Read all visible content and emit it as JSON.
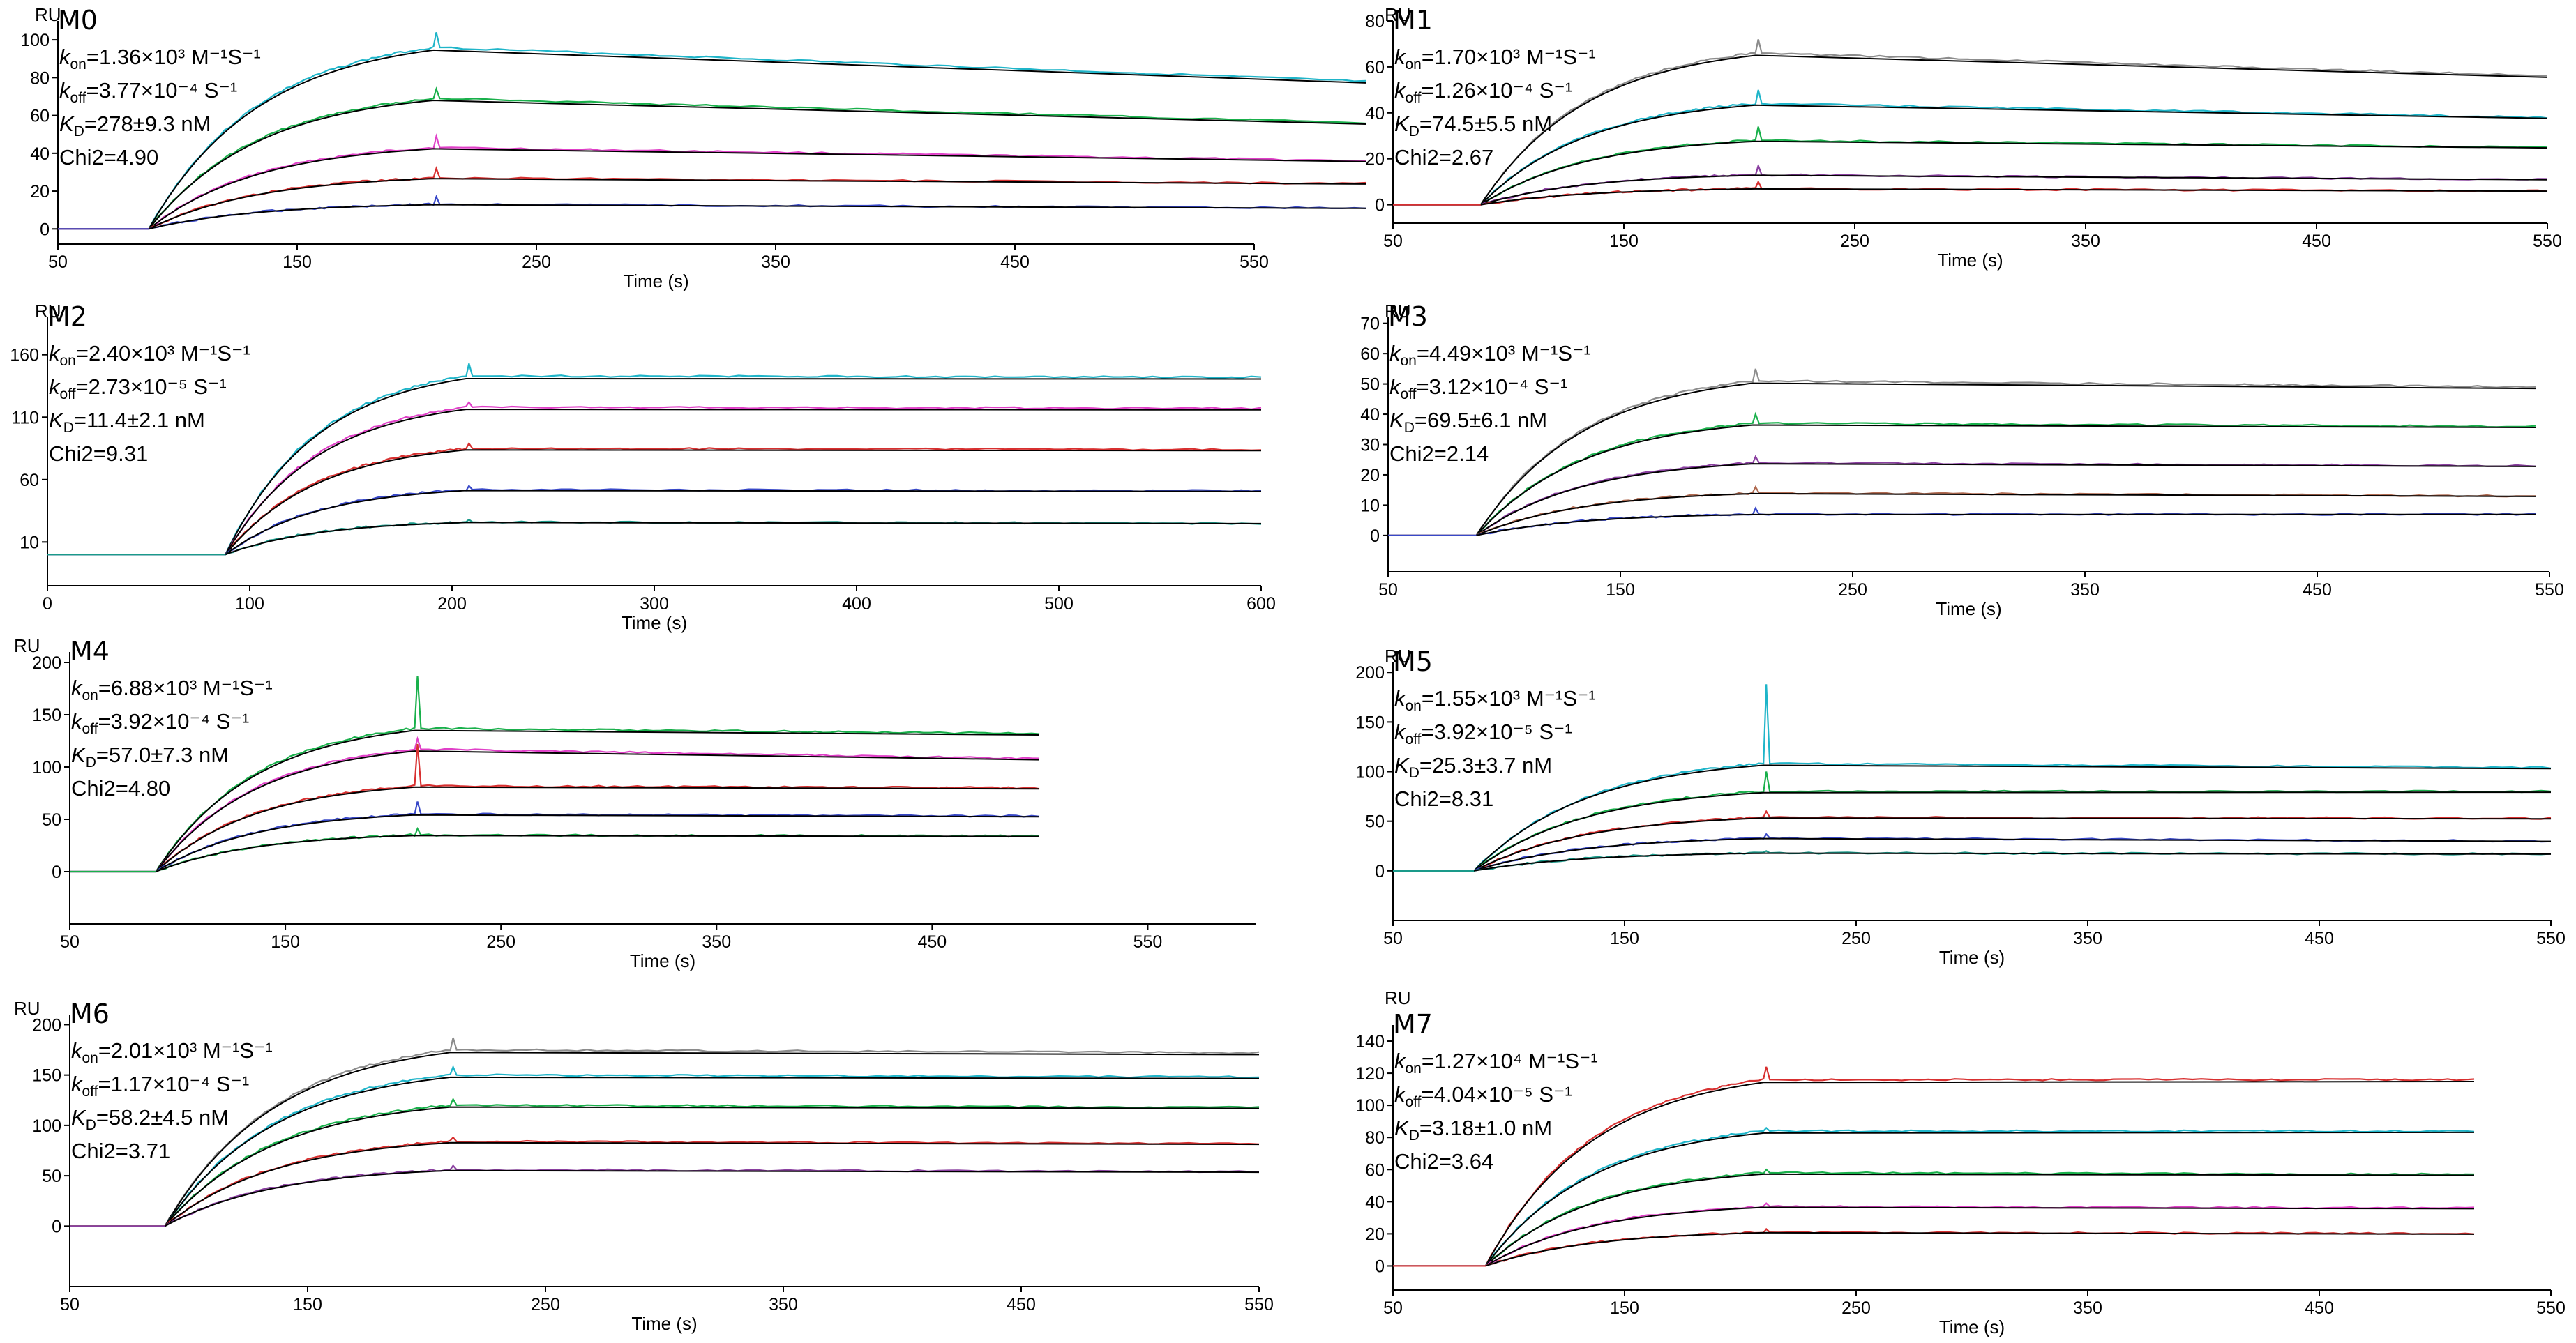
{
  "figure_description": "Sensorgrams of 8 protein samples M0–M7 with kinetic fits",
  "colors": {
    "fit": "#000000",
    "gray": "#8c8c8c",
    "cyan": "#1fb5c9",
    "green": "#19b04b",
    "purple": "#8a3fa0",
    "magenta": "#e040c8",
    "red": "#d83030",
    "blue": "#3848c8",
    "teal": "#1a9a8a",
    "brown": "#b06a50"
  },
  "chart_data": [
    {
      "id": "M0",
      "type": "line",
      "title": "M0",
      "xlabel": "Time (s)",
      "ylabel": "RU",
      "xlim": [
        50,
        550
      ],
      "ylim": [
        -8,
        110
      ],
      "xticks": [
        "50",
        "150",
        "250",
        "350",
        "450",
        "550"
      ],
      "yticks": [
        "0",
        "20",
        "40",
        "60",
        "80",
        "100"
      ],
      "inject": 88,
      "stop": 207,
      "annotation": {
        "kon": "1.36×10³ M⁻¹S⁻¹",
        "koff": "3.77×10⁻⁴ S⁻¹",
        "KD": "278±9.3 nM",
        "chi2": "4.90"
      },
      "series": [
        {
          "name": "cyan",
          "color": "cyan",
          "plateau": 96,
          "end": 78,
          "spike": 8
        },
        {
          "name": "green",
          "color": "green",
          "plateau": 69,
          "end": 56,
          "spike": 5
        },
        {
          "name": "magenta",
          "color": "magenta",
          "plateau": 43,
          "end": 36,
          "spike": 6
        },
        {
          "name": "red",
          "color": "red",
          "plateau": 27,
          "end": 24,
          "spike": 5
        },
        {
          "name": "blue",
          "color": "blue",
          "plateau": 13,
          "end": 11,
          "spike": 4
        }
      ]
    },
    {
      "id": "M1",
      "type": "line",
      "title": "M1",
      "xlabel": "Time (s)",
      "ylabel": "RU",
      "xlim": [
        50,
        550
      ],
      "ylim": [
        -8,
        80
      ],
      "xticks": [
        "50",
        "150",
        "250",
        "350",
        "450",
        "550"
      ],
      "yticks": [
        "0",
        "20",
        "40",
        "60",
        "80"
      ],
      "inject": 88,
      "stop": 207,
      "annotation": {
        "kon": "1.70×10³ M⁻¹S⁻¹",
        "koff": "1.26×10⁻⁴ S⁻¹",
        "KD": "74.5±5.5 nM",
        "chi2": "2.67"
      },
      "series": [
        {
          "name": "gray",
          "color": "gray",
          "plateau": 66,
          "end": 56,
          "spike": 6
        },
        {
          "name": "cyan",
          "color": "cyan",
          "plateau": 44,
          "end": 38,
          "spike": 6
        },
        {
          "name": "green",
          "color": "green",
          "plateau": 28,
          "end": 25,
          "spike": 6
        },
        {
          "name": "purple",
          "color": "purple",
          "plateau": 13,
          "end": 11,
          "spike": 4
        },
        {
          "name": "red",
          "color": "red",
          "plateau": 7,
          "end": 6,
          "spike": 3
        }
      ]
    },
    {
      "id": "M2",
      "type": "line",
      "title": "M2",
      "xlabel": "Time (s)",
      "ylabel": "RU",
      "xlim": [
        0,
        600
      ],
      "ylim": [
        -25,
        190
      ],
      "xticks": [
        "0",
        "100",
        "200",
        "300",
        "400",
        "500",
        "600"
      ],
      "yticks": [
        "10",
        "60",
        "110",
        "160"
      ],
      "inject": 88,
      "stop": 207,
      "annotation": {
        "kon": "2.40×10³ M⁻¹S⁻¹",
        "koff": "2.73×10⁻⁵ S⁻¹",
        "KD": "11.4±2.1 nM",
        "chi2": "9.31"
      },
      "series": [
        {
          "name": "cyan",
          "color": "cyan",
          "plateau": 143,
          "end": 142,
          "spike": 10
        },
        {
          "name": "magenta",
          "color": "magenta",
          "plateau": 118,
          "end": 117,
          "spike": 4
        },
        {
          "name": "red",
          "color": "red",
          "plateau": 85,
          "end": 84,
          "spike": 4
        },
        {
          "name": "blue",
          "color": "blue",
          "plateau": 52,
          "end": 51,
          "spike": 3
        },
        {
          "name": "teal",
          "color": "teal",
          "plateau": 26,
          "end": 25,
          "spike": 2
        }
      ]
    },
    {
      "id": "M3",
      "type": "line",
      "title": "M3",
      "xlabel": "Time (s)",
      "ylabel": "RU",
      "xlim": [
        50,
        550
      ],
      "ylim": [
        -12,
        72
      ],
      "xticks": [
        "50",
        "150",
        "250",
        "350",
        "450",
        "550"
      ],
      "yticks": [
        "0",
        "10",
        "20",
        "30",
        "40",
        "50",
        "60",
        "70"
      ],
      "inject": 88,
      "stop": 207,
      "annotation": {
        "kon": "4.49×10³ M⁻¹S⁻¹",
        "koff": "3.12×10⁻⁴ S⁻¹",
        "KD": "69.5±6.1 nM",
        "chi2": "2.14"
      },
      "series": [
        {
          "name": "gray",
          "color": "gray",
          "plateau": 51,
          "end": 49,
          "spike": 4
        },
        {
          "name": "green",
          "color": "green",
          "plateau": 37,
          "end": 36,
          "spike": 3
        },
        {
          "name": "purple",
          "color": "purple",
          "plateau": 24,
          "end": 23,
          "spike": 2
        },
        {
          "name": "brown",
          "color": "brown",
          "plateau": 14,
          "end": 13,
          "spike": 2
        },
        {
          "name": "blue",
          "color": "blue",
          "plateau": 7,
          "end": 7,
          "spike": 2
        }
      ]
    },
    {
      "id": "M4",
      "type": "line",
      "title": "M4",
      "xlabel": "Time (s)",
      "ylabel": "RU",
      "xlim": [
        50,
        600
      ],
      "ylim": [
        -50,
        210
      ],
      "xticks": [
        "50",
        "150",
        "250",
        "350",
        "450",
        "550"
      ],
      "yticks": [
        "0",
        "50",
        "100",
        "150",
        "200"
      ],
      "inject": 90,
      "stop": 210,
      "annotation": {
        "kon": "6.88×10³ M⁻¹S⁻¹",
        "koff": "3.92×10⁻⁴ S⁻¹",
        "KD": "57.0±7.3 nM",
        "chi2": "4.80"
      },
      "series": [
        {
          "name": "green",
          "color": "green",
          "plateau": 137,
          "end": 132,
          "spike": 50
        },
        {
          "name": "magenta",
          "color": "magenta",
          "plateau": 117,
          "end": 108,
          "spike": 10
        },
        {
          "name": "red",
          "color": "red",
          "plateau": 82,
          "end": 80,
          "spike": 40
        },
        {
          "name": "blue",
          "color": "blue",
          "plateau": 55,
          "end": 53,
          "spike": 12
        },
        {
          "name": "green2",
          "color": "green",
          "plateau": 35,
          "end": 34,
          "spike": 6
        }
      ]
    },
    {
      "id": "M5",
      "type": "line",
      "title": "M5",
      "xlabel": "Time (s)",
      "ylabel": "RU",
      "xlim": [
        50,
        550
      ],
      "ylim": [
        -50,
        210
      ],
      "xticks": [
        "50",
        "150",
        "250",
        "350",
        "450",
        "550"
      ],
      "yticks": [
        "0",
        "50",
        "100",
        "150",
        "200"
      ],
      "inject": 85,
      "stop": 210,
      "annotation": {
        "kon": "1.55×10³ M⁻¹S⁻¹",
        "koff": "3.92×10⁻⁵ S⁻¹",
        "KD": "25.3±3.7 nM",
        "chi2": "8.31"
      },
      "series": [
        {
          "name": "cyan",
          "color": "cyan",
          "plateau": 108,
          "end": 104,
          "spike": 80
        },
        {
          "name": "green",
          "color": "green",
          "plateau": 80,
          "end": 80,
          "spike": 20
        },
        {
          "name": "red",
          "color": "red",
          "plateau": 54,
          "end": 53,
          "spike": 6
        },
        {
          "name": "blue",
          "color": "blue",
          "plateau": 33,
          "end": 30,
          "spike": 4
        },
        {
          "name": "teal",
          "color": "teal",
          "plateau": 18,
          "end": 17,
          "spike": 2
        }
      ]
    },
    {
      "id": "M6",
      "type": "line",
      "title": "M6",
      "xlabel": "Time (s)",
      "ylabel": "RU",
      "xlim": [
        50,
        550
      ],
      "ylim": [
        -60,
        210
      ],
      "xticks": [
        "50",
        "150",
        "250",
        "350",
        "450",
        "550"
      ],
      "yticks": [
        "0",
        "50",
        "100",
        "150",
        "200"
      ],
      "inject": 90,
      "stop": 210,
      "annotation": {
        "kon": "2.01×10³ M⁻¹S⁻¹",
        "koff": "1.17×10⁻⁴ S⁻¹",
        "KD": "58.2±4.5 nM",
        "chi2": "3.71"
      },
      "series": [
        {
          "name": "gray",
          "color": "gray",
          "plateau": 175,
          "end": 172,
          "spike": 12
        },
        {
          "name": "cyan",
          "color": "cyan",
          "plateau": 150,
          "end": 148,
          "spike": 8
        },
        {
          "name": "green",
          "color": "green",
          "plateau": 120,
          "end": 118,
          "spike": 6
        },
        {
          "name": "red",
          "color": "red",
          "plateau": 84,
          "end": 82,
          "spike": 4
        },
        {
          "name": "purple",
          "color": "purple",
          "plateau": 56,
          "end": 54,
          "spike": 4
        }
      ]
    },
    {
      "id": "M7",
      "type": "line",
      "title": "M7",
      "xlabel": "Time (s)",
      "ylabel": "RU",
      "xlim": [
        50,
        550
      ],
      "ylim": [
        -15,
        150
      ],
      "xticks": [
        "50",
        "150",
        "250",
        "350",
        "450",
        "550"
      ],
      "yticks": [
        "0",
        "20",
        "40",
        "60",
        "80",
        "100",
        "120",
        "140"
      ],
      "inject": 90,
      "stop": 210,
      "annotation": {
        "kon": "1.27×10⁴ M⁻¹S⁻¹",
        "koff": "4.04×10⁻⁵ S⁻¹",
        "KD": "3.18±1.0 nM",
        "chi2": "3.64"
      },
      "series": [
        {
          "name": "red",
          "color": "red",
          "plateau": 116,
          "end": 116,
          "spike": 8
        },
        {
          "name": "cyan",
          "color": "cyan",
          "plateau": 84,
          "end": 84,
          "spike": 2
        },
        {
          "name": "green",
          "color": "green",
          "plateau": 58,
          "end": 57,
          "spike": 2
        },
        {
          "name": "magenta",
          "color": "magenta",
          "plateau": 37,
          "end": 36,
          "spike": 2
        },
        {
          "name": "red2",
          "color": "red",
          "plateau": 21,
          "end": 20,
          "spike": 2
        }
      ]
    }
  ]
}
